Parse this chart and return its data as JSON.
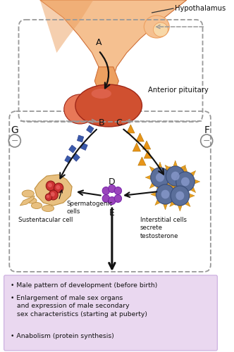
{
  "hypothalamus_label": "Hypothalamus",
  "ant_pit_label": "Anterior pituitary",
  "label_A": "A",
  "label_B": "B",
  "label_C": "C",
  "label_D": "D",
  "label_E": "E",
  "label_F": "F",
  "label_G": "G",
  "spermatogenic_label": "Spermatogenic\ncells",
  "sustentacular_label": "Sustentacular cell",
  "interstitial_label": "Interstitial cells\nsecrete\ntestosterone",
  "bullet1": "• Male pattern of development (before birth)",
  "bullet2": "• Enlargement of male sex organs\n   and expression of male secondary\n   sex characteristics (starting at puberty)",
  "bullet3": "• Anabolism (protein synthesis)",
  "bg_color": "#ffffff",
  "box_bg": "#ead8f0",
  "dashed_box_color": "#999999",
  "arrow_color": "#111111",
  "blue_sq_color": "#3a5aaa",
  "orange_tri_color": "#e89518",
  "minus_color": "#888888",
  "text_color": "#111111",
  "hypo_light": "#f5c090",
  "hypo_mid": "#eda060",
  "hypo_dark": "#d07038",
  "pit_light": "#e87858",
  "pit_mid": "#d05030",
  "pit_dark": "#a02818",
  "cell_blue_dark": "#3a4e7a",
  "cell_blue_mid": "#5a6e9a",
  "cell_blue_light": "#8899cc",
  "cell_orange": "#e8a020",
  "sust_color": "#e8c080",
  "sust_dark": "#c09040",
  "red_dot": "#cc3333",
  "purple_dot": "#9944bb",
  "purple_edge": "#7722aa"
}
